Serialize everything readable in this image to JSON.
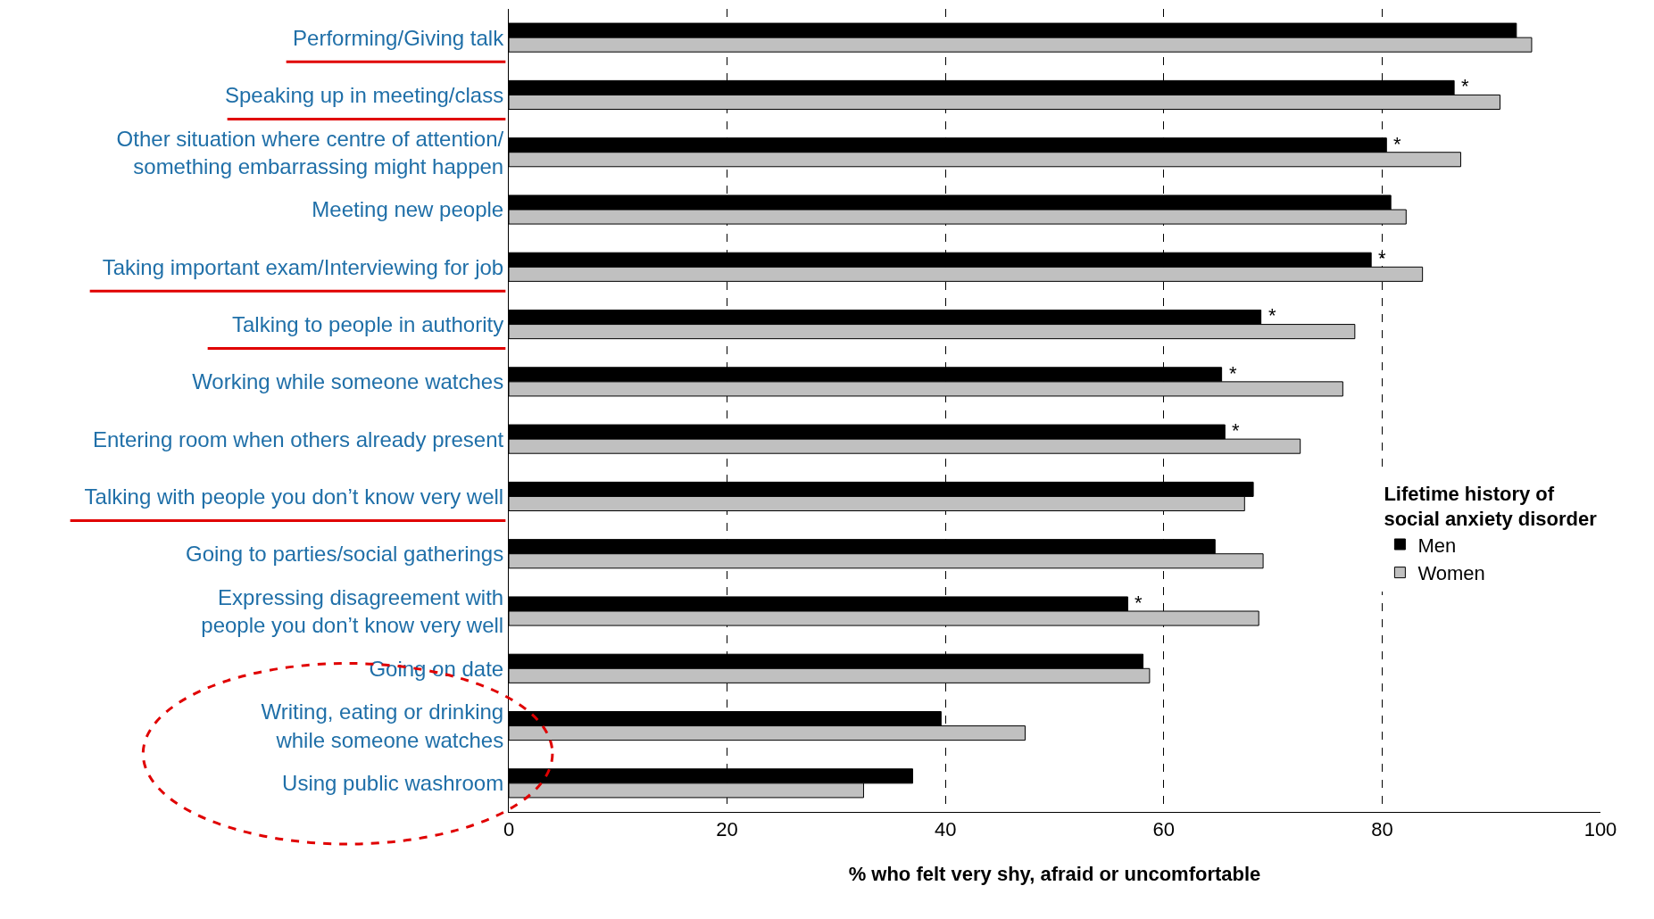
{
  "chart_data": {
    "type": "bar",
    "orientation": "horizontal",
    "categories": [
      "Performing/Giving talk",
      "Speaking up in meeting/class",
      "Other situation where centre of attention/\nsomething embarrassing might happen",
      "Meeting new people",
      "Taking important exam/Interviewing for job",
      "Talking to people in authority",
      "Working while someone watches",
      "Entering room when others already present",
      "Talking with people you don’t know very well",
      "Going to parties/social gatherings",
      "Expressing disagreement with\npeople you don’t know very well",
      "Going on date",
      "Writing, eating or drinking\nwhile someone watches",
      "Using public washroom"
    ],
    "series": [
      {
        "name": "Men",
        "color": "#000000",
        "values": [
          92.3,
          86.6,
          80.4,
          80.8,
          79.0,
          68.9,
          65.3,
          65.6,
          68.2,
          64.7,
          56.7,
          58.1,
          39.6,
          37.0
        ]
      },
      {
        "name": "Women",
        "color": "#c0c0c0",
        "values": [
          93.7,
          90.8,
          87.2,
          82.2,
          83.7,
          77.5,
          76.4,
          72.5,
          67.4,
          69.1,
          68.7,
          58.7,
          47.3,
          32.5
        ]
      }
    ],
    "xlim": [
      0,
      100
    ],
    "xticks": [
      0,
      20,
      40,
      60,
      80,
      100
    ],
    "xlabel": "% who felt very shy, afraid or uncomfortable",
    "legend_title": "Lifetime history of\nsocial anxiety disorder",
    "legend": "right",
    "grid": "x",
    "annotations": [
      {
        "text": "*",
        "x": 86.6,
        "y": "Speaking up in meeting/class"
      },
      {
        "text": "*",
        "x": 80.4,
        "y": "Other situation where centre of attention/\nsomething embarrassing might happen"
      },
      {
        "text": "*",
        "x": 79.0,
        "y": "Taking important exam/Interviewing for job"
      },
      {
        "text": "*",
        "x": 68.9,
        "y": "Talking to people in authority"
      },
      {
        "text": "*",
        "x": 65.3,
        "y": "Working while someone watches"
      },
      {
        "text": "*",
        "x": 65.6,
        "y": "Entering room when others already present"
      },
      {
        "text": "*",
        "x": 56.7,
        "y": "Expressing disagreement with\npeople you don’t know very well"
      }
    ]
  }
}
